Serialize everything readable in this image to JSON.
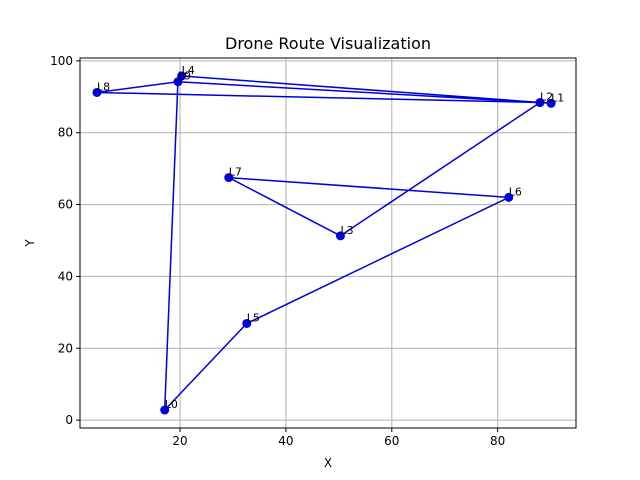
{
  "chart_data": {
    "type": "line",
    "title": "Drone Route Visualization",
    "xlabel": "X",
    "ylabel": "Y",
    "xlim": [
      1.1,
      94.8
    ],
    "ylim": [
      -2.2,
      100.8
    ],
    "xticks": [
      20,
      40,
      60,
      80
    ],
    "yticks": [
      0,
      20,
      40,
      60,
      80,
      100
    ],
    "grid": true,
    "line_color": "#0000dd",
    "points": [
      {
        "label": "L0",
        "x": 17.1,
        "y": 2.8
      },
      {
        "label": "L5",
        "x": 32.6,
        "y": 26.9
      },
      {
        "label": "L6",
        "x": 82.1,
        "y": 62.0
      },
      {
        "label": "L7",
        "x": 29.2,
        "y": 67.5
      },
      {
        "label": "L3",
        "x": 50.3,
        "y": 51.3
      },
      {
        "label": "L2",
        "x": 88.0,
        "y": 88.4
      },
      {
        "label": "L1",
        "x": 90.1,
        "y": 88.2
      },
      {
        "label": "L4",
        "x": 20.3,
        "y": 95.8
      },
      {
        "label": "L2",
        "x": 88.0,
        "y": 88.4
      },
      {
        "label": "L9",
        "x": 19.6,
        "y": 94.2
      },
      {
        "label": "L2",
        "x": 88.0,
        "y": 88.4
      },
      {
        "label": "L8",
        "x": 4.3,
        "y": 91.2
      },
      {
        "label": "L9",
        "x": 19.6,
        "y": 94.2
      },
      {
        "label": "L0",
        "x": 17.1,
        "y": 2.8
      }
    ]
  }
}
